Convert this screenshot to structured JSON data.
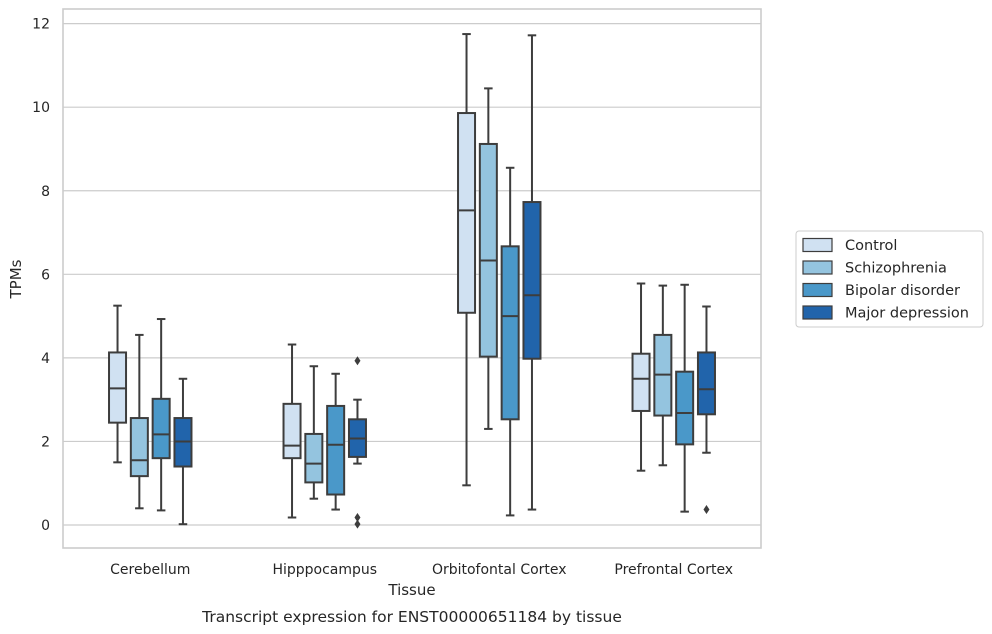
{
  "chart_data": {
    "type": "boxplot",
    "title": "",
    "caption": "Transcript expression for ENST00000651184 by tissue",
    "xlabel": "Tissue",
    "ylabel": "TPMs",
    "ylim": [
      -0.55,
      12.35
    ],
    "yticks": [
      0,
      2,
      4,
      6,
      8,
      10,
      12
    ],
    "grid": "horizontal",
    "legend_position": "right",
    "categories": [
      "Cerebellum",
      "Hipppocampus",
      "Orbitofontal Cortex",
      "Prefrontal Cortex"
    ],
    "series": [
      {
        "name": "Control",
        "color": "#d0e1f2",
        "boxes": [
          {
            "whislo": 1.5,
            "q1": 2.45,
            "med": 3.27,
            "q3": 4.13,
            "whishi": 5.25,
            "fliers": []
          },
          {
            "whislo": 0.18,
            "q1": 1.6,
            "med": 1.9,
            "q3": 2.9,
            "whishi": 4.32,
            "fliers": []
          },
          {
            "whislo": 0.95,
            "q1": 5.08,
            "med": 7.53,
            "q3": 9.86,
            "whishi": 11.75,
            "fliers": []
          },
          {
            "whislo": 1.3,
            "q1": 2.73,
            "med": 3.5,
            "q3": 4.1,
            "whishi": 5.78,
            "fliers": []
          }
        ]
      },
      {
        "name": "Schizophrenia",
        "color": "#94c4df",
        "boxes": [
          {
            "whislo": 0.4,
            "q1": 1.17,
            "med": 1.55,
            "q3": 2.56,
            "whishi": 4.55,
            "fliers": []
          },
          {
            "whislo": 0.63,
            "q1": 1.02,
            "med": 1.47,
            "q3": 2.18,
            "whishi": 3.8,
            "fliers": []
          },
          {
            "whislo": 2.3,
            "q1": 4.03,
            "med": 6.33,
            "q3": 9.12,
            "whishi": 10.45,
            "fliers": []
          },
          {
            "whislo": 1.43,
            "q1": 2.62,
            "med": 3.6,
            "q3": 4.55,
            "whishi": 5.73,
            "fliers": []
          }
        ]
      },
      {
        "name": "Bipolar disorder",
        "color": "#4a98c9",
        "boxes": [
          {
            "whislo": 0.35,
            "q1": 1.6,
            "med": 2.17,
            "q3": 3.02,
            "whishi": 4.93,
            "fliers": []
          },
          {
            "whislo": 0.37,
            "q1": 0.73,
            "med": 1.92,
            "q3": 2.85,
            "whishi": 3.62,
            "fliers": []
          },
          {
            "whislo": 0.23,
            "q1": 2.53,
            "med": 5.0,
            "q3": 6.67,
            "whishi": 8.55,
            "fliers": []
          },
          {
            "whislo": 0.32,
            "q1": 1.93,
            "med": 2.68,
            "q3": 3.67,
            "whishi": 5.75,
            "fliers": []
          }
        ]
      },
      {
        "name": "Major depression",
        "color": "#2164ab",
        "boxes": [
          {
            "whislo": 0.02,
            "q1": 1.4,
            "med": 2.0,
            "q3": 2.56,
            "whishi": 3.5,
            "fliers": []
          },
          {
            "whislo": 1.47,
            "q1": 1.63,
            "med": 2.07,
            "q3": 2.53,
            "whishi": 3.0,
            "fliers": [
              3.93,
              0.18,
              0.02
            ]
          },
          {
            "whislo": 0.37,
            "q1": 3.98,
            "med": 5.5,
            "q3": 7.73,
            "whishi": 11.72,
            "fliers": []
          },
          {
            "whislo": 1.73,
            "q1": 2.65,
            "med": 3.25,
            "q3": 4.13,
            "whishi": 5.23,
            "fliers": [
              0.37
            ]
          }
        ]
      }
    ]
  }
}
